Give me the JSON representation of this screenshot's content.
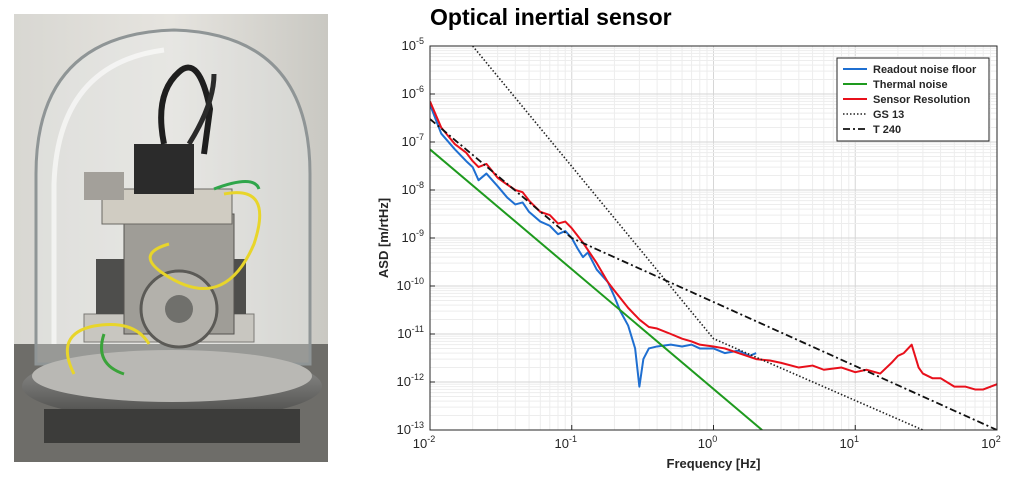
{
  "page": {
    "title": "Optical inertial sensor",
    "photo_description": ""
  },
  "chart_data": {
    "type": "line",
    "title": "Optical inertial sensor",
    "xlabel": "Frequency [Hz]",
    "ylabel": "ASD [m/rtHz]",
    "xscale": "log",
    "yscale": "log",
    "xlim": [
      0.01,
      100
    ],
    "ylim": [
      1e-13,
      1e-05
    ],
    "grid": true,
    "legend_position": "top-right",
    "x_ticks": [
      {
        "v": 0.01,
        "base": "10",
        "exp": "-2"
      },
      {
        "v": 0.1,
        "base": "10",
        "exp": "-1"
      },
      {
        "v": 1,
        "base": "10",
        "exp": "0"
      },
      {
        "v": 10,
        "base": "10",
        "exp": "1"
      },
      {
        "v": 100,
        "base": "10",
        "exp": "2"
      }
    ],
    "y_ticks": [
      {
        "v": 1e-13,
        "base": "10",
        "exp": "-13"
      },
      {
        "v": 1e-12,
        "base": "10",
        "exp": "-12"
      },
      {
        "v": 1e-11,
        "base": "10",
        "exp": "-11"
      },
      {
        "v": 1e-10,
        "base": "10",
        "exp": "-10"
      },
      {
        "v": 1e-09,
        "base": "10",
        "exp": "-9"
      },
      {
        "v": 1e-08,
        "base": "10",
        "exp": "-8"
      },
      {
        "v": 1e-07,
        "base": "10",
        "exp": "-7"
      },
      {
        "v": 1e-06,
        "base": "10",
        "exp": "-6"
      },
      {
        "v": 1e-05,
        "base": "10",
        "exp": "-5"
      }
    ],
    "series": [
      {
        "name": "Readout noise floor",
        "color": "#1f6fd1",
        "dash": "solid",
        "x": [
          0.01,
          0.012,
          0.015,
          0.018,
          0.02,
          0.022,
          0.025,
          0.03,
          0.035,
          0.04,
          0.045,
          0.05,
          0.06,
          0.07,
          0.08,
          0.09,
          0.1,
          0.11,
          0.12,
          0.13,
          0.15,
          0.18,
          0.2,
          0.22,
          0.25,
          0.28,
          0.3,
          0.32,
          0.35,
          0.4,
          0.5,
          0.6,
          0.7,
          0.8,
          1,
          1.2,
          1.5,
          1.8,
          2
        ],
        "y": [
          6e-07,
          1.5e-07,
          7e-08,
          4e-08,
          3e-08,
          1.6e-08,
          2.2e-08,
          1.2e-08,
          7e-09,
          5e-09,
          5.5e-09,
          3.5e-09,
          2.2e-09,
          1.8e-09,
          1.2e-09,
          1.4e-09,
          1e-09,
          6e-10,
          4e-10,
          5e-10,
          2.2e-10,
          1.2e-10,
          6e-11,
          3e-11,
          1.5e-11,
          5e-12,
          8e-13,
          3e-12,
          5e-12,
          5.5e-12,
          6e-12,
          5.5e-12,
          6e-12,
          5e-12,
          5e-12,
          4e-12,
          4.5e-12,
          3.5e-12,
          4e-12
        ]
      },
      {
        "name": "Thermal noise",
        "color": "#1e9a1e",
        "dash": "solid",
        "x": [
          0.01,
          2.2
        ],
        "y": [
          7e-08,
          1e-13
        ]
      },
      {
        "name": "Sensor Resolution",
        "color": "#e8101b",
        "dash": "solid",
        "x": [
          0.01,
          0.012,
          0.015,
          0.018,
          0.02,
          0.022,
          0.025,
          0.03,
          0.035,
          0.04,
          0.045,
          0.05,
          0.06,
          0.07,
          0.08,
          0.09,
          0.1,
          0.12,
          0.15,
          0.18,
          0.2,
          0.25,
          0.3,
          0.35,
          0.4,
          0.5,
          0.6,
          0.7,
          0.8,
          1,
          1.2,
          1.5,
          2,
          2.5,
          3,
          4,
          5,
          6,
          8,
          10,
          12,
          15,
          18,
          20,
          22,
          25,
          28,
          30,
          35,
          40,
          50,
          60,
          70,
          80,
          90,
          100
        ],
        "y": [
          7e-07,
          2e-07,
          9e-08,
          6e-08,
          4e-08,
          3e-08,
          3.5e-08,
          1.8e-08,
          1.3e-08,
          1e-08,
          9e-09,
          6e-09,
          3.5e-09,
          3e-09,
          2e-09,
          2.2e-09,
          1.6e-09,
          8e-10,
          3e-10,
          1.2e-10,
          8e-11,
          3.5e-11,
          2e-11,
          1.4e-11,
          1.3e-11,
          1e-11,
          8e-12,
          7e-12,
          6e-12,
          5.5e-12,
          5e-12,
          4e-12,
          3e-12,
          2.8e-12,
          2.5e-12,
          2e-12,
          2.2e-12,
          1.8e-12,
          2e-12,
          1.6e-12,
          1.8e-12,
          1.5e-12,
          2.5e-12,
          3.5e-12,
          4e-12,
          6e-12,
          2e-12,
          1.5e-12,
          1.2e-12,
          1.2e-12,
          8e-13,
          8e-13,
          7e-13,
          7e-13,
          8e-13,
          9e-13
        ]
      },
      {
        "name": "GS 13",
        "color": "#222222",
        "dash": "dotted",
        "x": [
          0.02,
          1,
          30
        ],
        "y": [
          1e-05,
          8e-12,
          1e-13
        ]
      },
      {
        "name": "T 240",
        "color": "#111111",
        "dash": "dashdot",
        "x": [
          0.01,
          0.1,
          100
        ],
        "y": [
          3e-07,
          1e-09,
          1e-13
        ]
      }
    ]
  }
}
